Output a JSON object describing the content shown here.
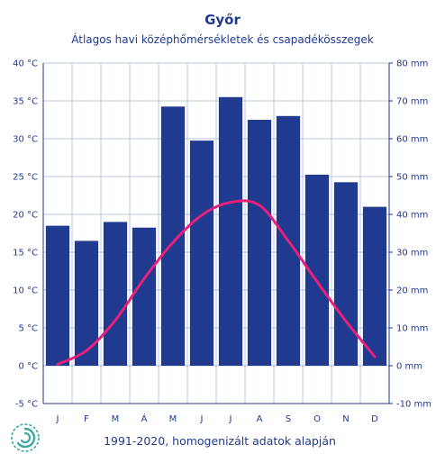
{
  "title": "Győr",
  "subtitle": "Átlagos havi középhőmérsékletek  és csapadékösszegek",
  "footnote": "1991-2020, homogenizált adatok alapján",
  "logo": "omsz-spiral-logo",
  "colors": {
    "bars": "#1f3a8f",
    "line": "#e8207a",
    "grid": "#b8c4dc",
    "text": "#1f3a8f",
    "logo": "#3aa8a0"
  },
  "chart_data": {
    "type": "bar+line",
    "categories": [
      "J",
      "F",
      "M",
      "Á",
      "M",
      "J",
      "J",
      "A",
      "S",
      "O",
      "N",
      "D"
    ],
    "series": [
      {
        "type": "bar",
        "axis": "right",
        "unit": "mm",
        "values": [
          37,
          33,
          38,
          36.5,
          68.5,
          59.5,
          71,
          65,
          66,
          50.5,
          48.5,
          42
        ]
      },
      {
        "type": "line",
        "axis": "left",
        "unit": "°C",
        "values": [
          0.2,
          2.0,
          6.0,
          11.5,
          16.3,
          19.9,
          21.6,
          21.2,
          16.5,
          11.1,
          5.9,
          1.2
        ]
      }
    ],
    "y_left": {
      "ylim": [
        -5,
        40
      ],
      "ticks": [
        "-5 °C",
        "0 °C",
        "5 °C",
        "10 °C",
        "15 °C",
        "20 °C",
        "25 °C",
        "30 °C",
        "35 °C",
        "40 °C"
      ]
    },
    "y_right": {
      "ylim": [
        -10,
        80
      ],
      "ticks": [
        "-10 mm",
        "0 mm",
        "10 mm",
        "20 mm",
        "30 mm",
        "40 mm",
        "50 mm",
        "60 mm",
        "70 mm",
        "80 mm"
      ]
    },
    "grid": true
  }
}
